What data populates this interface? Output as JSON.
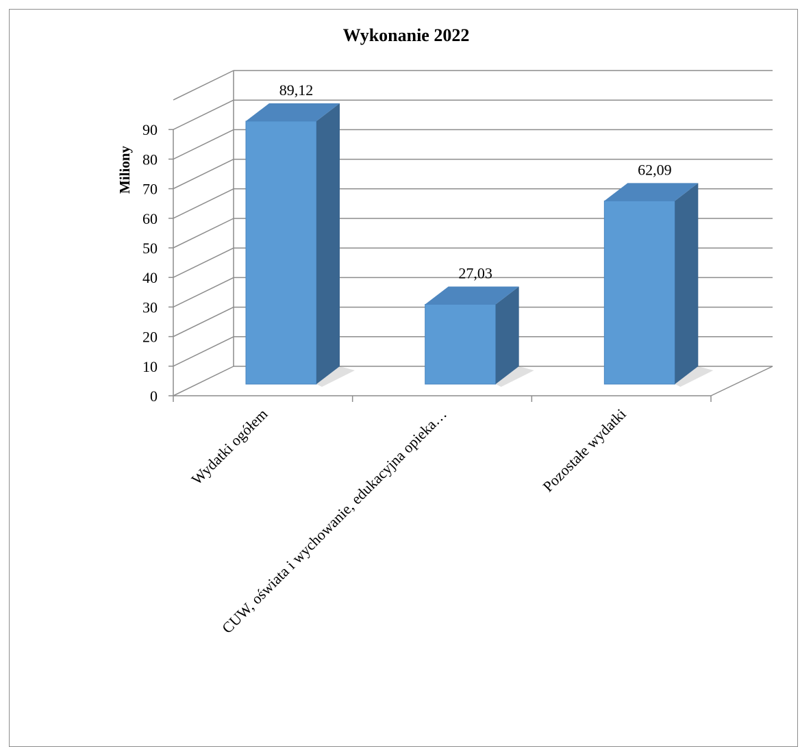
{
  "chart_data": {
    "type": "bar",
    "title": "Wykonanie 2022",
    "ylabel": "Miliony",
    "xlabel": "",
    "categories": [
      "Wydatki ogółem",
      "CUW, oświata i wychowanie, edukacyjna opieka…",
      "Pozostałe wydatki"
    ],
    "values": [
      89.12,
      27.03,
      62.09
    ],
    "value_labels": [
      "89,12",
      "27,03",
      "62,09"
    ],
    "ylim": [
      0,
      100
    ],
    "yticks": [
      0,
      10,
      20,
      30,
      40,
      50,
      60,
      70,
      80,
      90
    ],
    "grid": true,
    "legend": "none",
    "bar_color": "#5b9bd5",
    "bar_side_color": "#3a6690",
    "bar_top_color": "#4d86bf"
  }
}
